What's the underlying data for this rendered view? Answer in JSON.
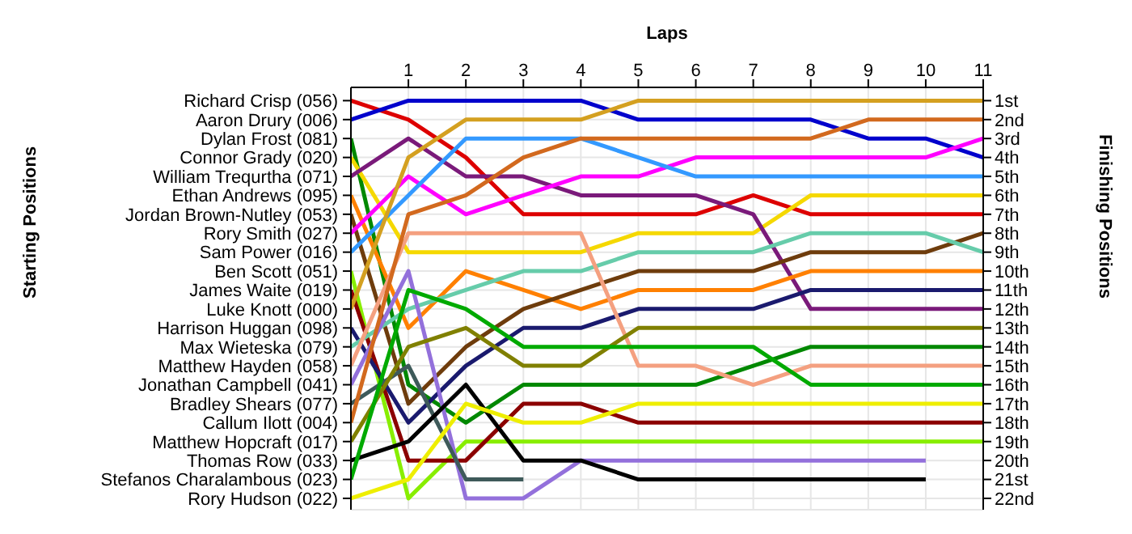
{
  "chart_data": {
    "type": "line",
    "xlabel": "Laps",
    "ylabel": "Finishing Positions",
    "x": [
      0,
      1,
      2,
      3,
      4,
      5,
      6,
      7,
      8,
      9,
      10,
      11
    ],
    "xlim": [
      0,
      11
    ],
    "xticks": [
      1,
      2,
      3,
      4,
      5,
      6,
      7,
      8,
      9,
      10,
      11
    ],
    "ylim": [
      22.6,
      0.3
    ],
    "yticks": [
      {
        "value": 1,
        "label": "1st"
      },
      {
        "value": 2,
        "label": "2nd"
      },
      {
        "value": 3,
        "label": "3rd"
      },
      {
        "value": 4,
        "label": "4th"
      },
      {
        "value": 5,
        "label": "5th"
      },
      {
        "value": 6,
        "label": "6th"
      },
      {
        "value": 7,
        "label": "7th"
      },
      {
        "value": 8,
        "label": "8th"
      },
      {
        "value": 9,
        "label": "9th"
      },
      {
        "value": 10,
        "label": "10th"
      },
      {
        "value": 11,
        "label": "11th"
      },
      {
        "value": 12,
        "label": "12th"
      },
      {
        "value": 13,
        "label": "13th"
      },
      {
        "value": 14,
        "label": "14th"
      },
      {
        "value": 15,
        "label": "15th"
      },
      {
        "value": 16,
        "label": "16th"
      },
      {
        "value": 17,
        "label": "17th"
      },
      {
        "value": 18,
        "label": "18th"
      },
      {
        "value": 19,
        "label": "19th"
      },
      {
        "value": 20,
        "label": "20th"
      },
      {
        "value": 21,
        "label": "21st"
      },
      {
        "value": 22,
        "label": "22nd"
      }
    ],
    "grid": true,
    "legend": false,
    "marker": "none",
    "line_style": "solid",
    "annotations": [
      "Starting Positions",
      "Richard Crisp (056)",
      "Aaron Drury (006)",
      "Dylan Frost (081)",
      "Connor Grady (020)",
      "William Trequrtha (071)",
      "Ethan Andrews (095)",
      "Jordan Brown-Nutley (053)",
      "Rory Smith (027)",
      "Sam Power (016)",
      "Ben Scott (051)",
      "James Waite (019)",
      "Luke Knott (000)",
      "Harrison Huggan (098)",
      "Max Wieteska (079)",
      "Matthew Hayden (058)",
      "Jonathan Campbell (041)",
      "Bradley Shears (077)",
      "Callum Ilott (004)",
      "Matthew Hopcraft (017)",
      "Thomas Row (033)",
      "Stefanos Charalambous (023)",
      "Rory Hudson (022)"
    ],
    "series": [
      {
        "color": "#dd0000",
        "values": [
          1,
          2,
          4,
          7,
          7,
          7,
          7,
          6,
          7,
          7,
          7,
          7
        ]
      },
      {
        "color": "#0000cc",
        "values": [
          2,
          1,
          1,
          1,
          1,
          2,
          2,
          2,
          2,
          3,
          3,
          4
        ]
      },
      {
        "color": "#008800",
        "values": [
          3,
          16,
          18,
          16,
          16,
          16,
          16,
          15,
          14,
          14,
          14,
          14
        ]
      },
      {
        "color": "#f5d800",
        "values": [
          4,
          9,
          9,
          9,
          9,
          8,
          8,
          8,
          6,
          6,
          6,
          6
        ]
      },
      {
        "color": "#7a1a7a",
        "values": [
          5,
          3,
          5,
          5,
          6,
          6,
          6,
          7,
          12,
          12,
          12,
          12
        ]
      },
      {
        "color": "#ff8000",
        "values": [
          6,
          13,
          10,
          11,
          12,
          11,
          11,
          11,
          10,
          10,
          10,
          10
        ]
      },
      {
        "color": "#6e3c0c",
        "values": [
          7,
          17,
          14,
          12,
          11,
          10,
          10,
          10,
          9,
          9,
          9,
          8
        ]
      },
      {
        "color": "#ff00ff",
        "values": [
          8,
          5,
          7,
          6,
          5,
          5,
          4,
          4,
          4,
          4,
          4,
          3
        ]
      },
      {
        "color": "#3399ff",
        "values": [
          9,
          6,
          3,
          3,
          3,
          4,
          5,
          5,
          5,
          5,
          5,
          5
        ]
      },
      {
        "color": "#88ee00",
        "values": [
          10,
          22,
          19,
          19,
          19,
          19,
          19,
          19,
          19,
          19,
          19,
          19
        ]
      },
      {
        "color": "#8b0000",
        "values": [
          11,
          20,
          20,
          17,
          17,
          18,
          18,
          18,
          18,
          18,
          18,
          18
        ]
      },
      {
        "color": "#d4a020",
        "values": [
          12,
          4,
          2,
          2,
          2,
          1,
          1,
          1,
          1,
          1,
          1,
          1
        ]
      },
      {
        "color": "#1a1a6e",
        "values": [
          13,
          18,
          15,
          13,
          13,
          12,
          12,
          12,
          11,
          11,
          11,
          11
        ]
      },
      {
        "color": "#66ccaa",
        "values": [
          14,
          12,
          11,
          10,
          10,
          9,
          9,
          9,
          8,
          8,
          8,
          9
        ]
      },
      {
        "color": "#f4a080",
        "values": [
          15,
          8,
          8,
          8,
          8,
          15,
          15,
          16,
          15,
          15,
          15,
          15
        ]
      },
      {
        "color": "#9370db",
        "values": [
          16,
          10,
          22,
          22,
          20,
          20,
          20,
          20,
          20,
          20,
          20,
          null
        ]
      },
      {
        "color": "#3e5a5a",
        "values": [
          17,
          15,
          21,
          21,
          null,
          null,
          null,
          null,
          null,
          null,
          null,
          null
        ]
      },
      {
        "color": "#d2691e",
        "values": [
          18,
          7,
          6,
          4,
          3,
          3,
          3,
          3,
          3,
          2,
          2,
          2
        ]
      },
      {
        "color": "#808000",
        "values": [
          19,
          14,
          13,
          15,
          15,
          13,
          13,
          13,
          13,
          13,
          13,
          13
        ]
      },
      {
        "color": "#000000",
        "values": [
          20,
          19,
          16,
          20,
          20,
          21,
          21,
          21,
          21,
          21,
          21,
          null
        ]
      },
      {
        "color": "#00aa00",
        "values": [
          21,
          11,
          12,
          14,
          14,
          14,
          14,
          14,
          16,
          16,
          16,
          16
        ]
      },
      {
        "color": "#eeee00",
        "values": [
          22,
          21,
          17,
          18,
          18,
          17,
          17,
          17,
          17,
          17,
          17,
          17
        ]
      }
    ]
  }
}
